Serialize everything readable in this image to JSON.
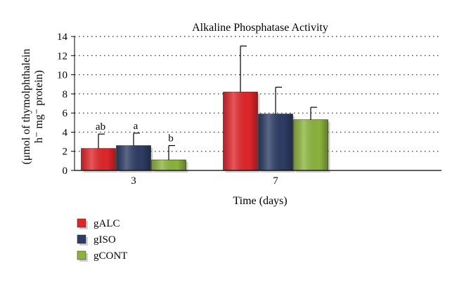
{
  "chart_data": {
    "type": "bar",
    "title": "Alkaline Phosphatase Activity",
    "xlabel": "Time (days)",
    "ylabel_line1": "(μmol of thymolphthalein",
    "ylabel_line2": "h⁻ mg⁻ protein)",
    "categories": [
      "3",
      "7"
    ],
    "ylim": [
      0,
      14
    ],
    "yticks": [
      0,
      2,
      4,
      6,
      8,
      10,
      12,
      14
    ],
    "grid": true,
    "legend_position": "bottom-left",
    "series": [
      {
        "name": "gALC",
        "color": "#e0262b",
        "values": [
          2.3,
          8.2
        ],
        "errors": [
          1.5,
          4.8
        ],
        "annotations": [
          "ab",
          ""
        ]
      },
      {
        "name": "gISO",
        "color": "#2d3c64",
        "values": [
          2.6,
          5.9
        ],
        "errors": [
          1.3,
          2.8
        ],
        "annotations": [
          "a",
          ""
        ]
      },
      {
        "name": "gCONT",
        "color": "#8cb43c",
        "values": [
          1.1,
          5.3
        ],
        "errors": [
          1.5,
          1.3
        ],
        "annotations": [
          "b",
          ""
        ]
      }
    ]
  }
}
